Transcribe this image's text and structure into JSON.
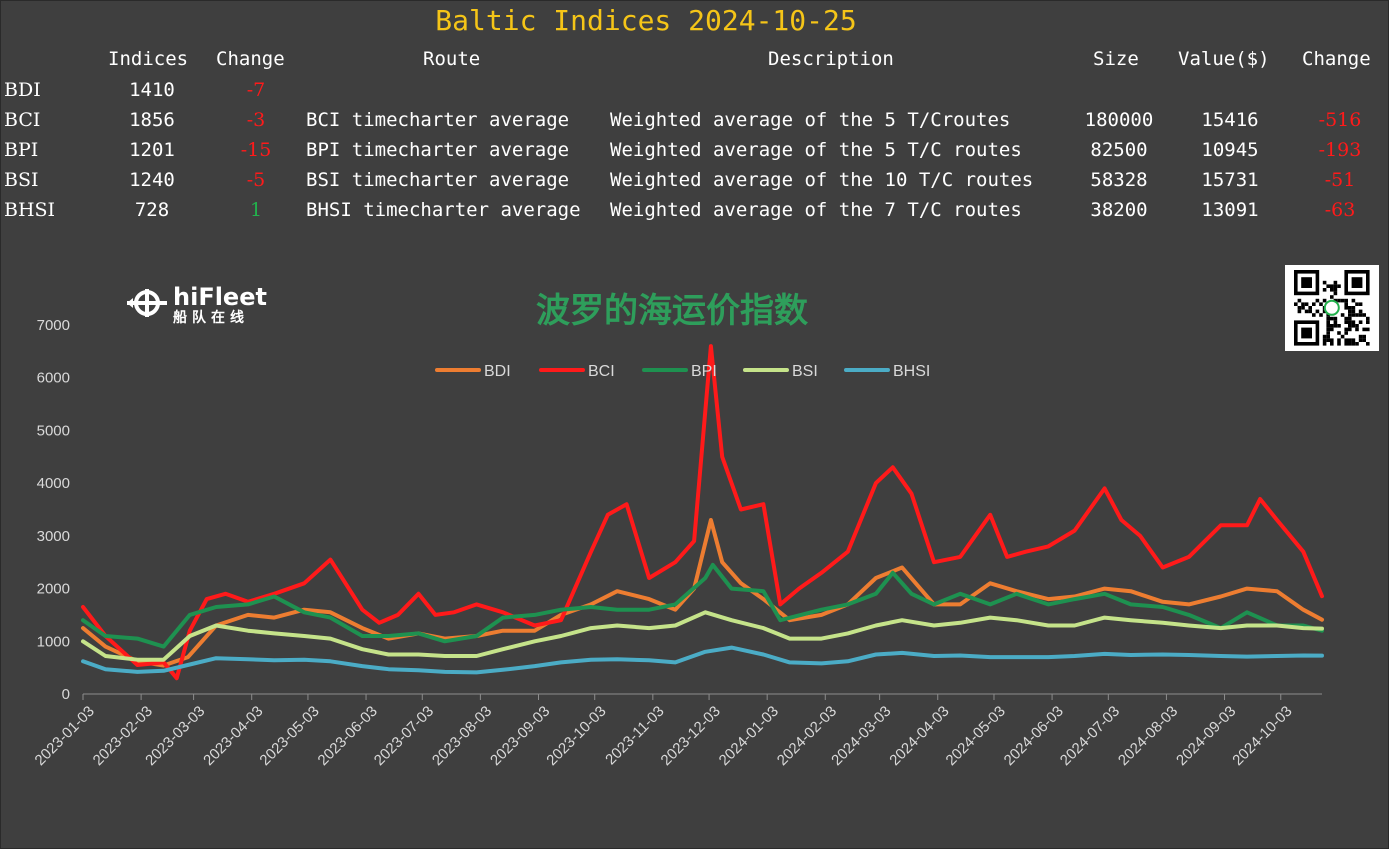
{
  "title": "Baltic Indices 2024-10-25",
  "table": {
    "headers": [
      "Indices",
      "Change",
      "Route",
      "Description",
      "Size",
      "Value($)",
      "Change"
    ],
    "rows": [
      {
        "code": "BDI",
        "index": "1410",
        "change": "-7",
        "route": "",
        "description": "",
        "size": "",
        "value": "",
        "vchange": ""
      },
      {
        "code": "BCI",
        "index": "1856",
        "change": "-3",
        "route": "BCI timecharter average",
        "description": "Weighted average of the 5 T/Croutes",
        "size": "180000",
        "value": "15416",
        "vchange": "-516"
      },
      {
        "code": "BPI",
        "index": "1201",
        "change": "-15",
        "route": "BPI timecharter average",
        "description": "Weighted average of the 5 T/C routes",
        "size": "82500",
        "value": "10945",
        "vchange": "-193"
      },
      {
        "code": "BSI",
        "index": "1240",
        "change": "-5",
        "route": "BSI timecharter average",
        "description": "Weighted average of the 10 T/C routes",
        "size": "58328",
        "value": "15731",
        "vchange": "-51"
      },
      {
        "code": "BHSI",
        "index": "728",
        "change": "1",
        "route": "BHSI timecharter average",
        "description": "Weighted average of the 7 T/C routes",
        "size": "38200",
        "value": "13091",
        "vchange": "-63"
      }
    ]
  },
  "logo": {
    "name": "hiFleet",
    "subtitle": "船队在线",
    "icon": "ship-wheel-icon"
  },
  "qr": {
    "icon": "qr-code-icon"
  },
  "colors": {
    "title": "#f5c518",
    "negative": "#ff1a1a",
    "positive": "#22b14c",
    "chart_title": "#2e9e5b",
    "background": "#3f3f3f"
  },
  "chart_data": {
    "type": "line",
    "title": "波罗的海运价指数",
    "ylim": [
      0,
      7000
    ],
    "yticks": [
      0,
      1000,
      2000,
      3000,
      4000,
      5000,
      6000,
      7000
    ],
    "xrange": [
      "2023-01-03",
      "2024-10-25"
    ],
    "xticks": [
      "2023-01-03",
      "2023-02-03",
      "2023-03-03",
      "2023-04-03",
      "2023-05-03",
      "2023-06-03",
      "2023-07-03",
      "2023-08-03",
      "2023-09-03",
      "2023-10-03",
      "2023-11-03",
      "2023-12-03",
      "2024-01-03",
      "2024-02-03",
      "2024-03-03",
      "2024-04-03",
      "2024-05-03",
      "2024-06-03",
      "2024-07-03",
      "2024-08-03",
      "2024-09-03",
      "2024-10-03"
    ],
    "legend_position": "top-center",
    "grid": false,
    "series": [
      {
        "name": "BDI",
        "color": "#ed7d31",
        "points": [
          [
            "2023-01-03",
            1250
          ],
          [
            "2023-01-15",
            900
          ],
          [
            "2023-02-01",
            620
          ],
          [
            "2023-02-15",
            540
          ],
          [
            "2023-02-28",
            700
          ],
          [
            "2023-03-15",
            1300
          ],
          [
            "2023-04-01",
            1500
          ],
          [
            "2023-04-15",
            1450
          ],
          [
            "2023-05-01",
            1600
          ],
          [
            "2023-05-15",
            1550
          ],
          [
            "2023-06-01",
            1250
          ],
          [
            "2023-06-15",
            1050
          ],
          [
            "2023-07-01",
            1150
          ],
          [
            "2023-07-15",
            1050
          ],
          [
            "2023-08-01",
            1100
          ],
          [
            "2023-08-15",
            1200
          ],
          [
            "2023-09-01",
            1200
          ],
          [
            "2023-09-15",
            1500
          ],
          [
            "2023-10-01",
            1700
          ],
          [
            "2023-10-15",
            1950
          ],
          [
            "2023-11-01",
            1800
          ],
          [
            "2023-11-15",
            1600
          ],
          [
            "2023-11-25",
            2000
          ],
          [
            "2023-12-04",
            3300
          ],
          [
            "2023-12-10",
            2500
          ],
          [
            "2023-12-20",
            2100
          ],
          [
            "2024-01-01",
            1800
          ],
          [
            "2024-01-15",
            1400
          ],
          [
            "2024-02-01",
            1500
          ],
          [
            "2024-02-15",
            1700
          ],
          [
            "2024-03-01",
            2200
          ],
          [
            "2024-03-15",
            2400
          ],
          [
            "2024-04-01",
            1700
          ],
          [
            "2024-04-15",
            1700
          ],
          [
            "2024-05-01",
            2100
          ],
          [
            "2024-05-15",
            1950
          ],
          [
            "2024-06-01",
            1800
          ],
          [
            "2024-06-15",
            1850
          ],
          [
            "2024-07-01",
            2000
          ],
          [
            "2024-07-15",
            1950
          ],
          [
            "2024-08-01",
            1750
          ],
          [
            "2024-08-15",
            1700
          ],
          [
            "2024-09-01",
            1850
          ],
          [
            "2024-09-15",
            2000
          ],
          [
            "2024-10-01",
            1950
          ],
          [
            "2024-10-15",
            1600
          ],
          [
            "2024-10-25",
            1410
          ]
        ]
      },
      {
        "name": "BCI",
        "color": "#ff1a1a",
        "points": [
          [
            "2023-01-03",
            1650
          ],
          [
            "2023-01-15",
            1100
          ],
          [
            "2023-02-01",
            550
          ],
          [
            "2023-02-15",
            600
          ],
          [
            "2023-02-22",
            300
          ],
          [
            "2023-03-01",
            1200
          ],
          [
            "2023-03-10",
            1800
          ],
          [
            "2023-03-20",
            1900
          ],
          [
            "2023-04-01",
            1750
          ],
          [
            "2023-04-15",
            1900
          ],
          [
            "2023-05-01",
            2100
          ],
          [
            "2023-05-15",
            2550
          ],
          [
            "2023-06-01",
            1600
          ],
          [
            "2023-06-10",
            1350
          ],
          [
            "2023-06-20",
            1500
          ],
          [
            "2023-07-01",
            1900
          ],
          [
            "2023-07-10",
            1500
          ],
          [
            "2023-07-20",
            1550
          ],
          [
            "2023-08-01",
            1700
          ],
          [
            "2023-08-15",
            1550
          ],
          [
            "2023-09-01",
            1300
          ],
          [
            "2023-09-15",
            1400
          ],
          [
            "2023-10-01",
            2700
          ],
          [
            "2023-10-10",
            3400
          ],
          [
            "2023-10-20",
            3600
          ],
          [
            "2023-11-01",
            2200
          ],
          [
            "2023-11-15",
            2500
          ],
          [
            "2023-11-25",
            2900
          ],
          [
            "2023-12-04",
            6600
          ],
          [
            "2023-12-10",
            4500
          ],
          [
            "2023-12-20",
            3500
          ],
          [
            "2024-01-01",
            3600
          ],
          [
            "2024-01-10",
            1700
          ],
          [
            "2024-01-20",
            2000
          ],
          [
            "2024-02-01",
            2300
          ],
          [
            "2024-02-15",
            2700
          ],
          [
            "2024-03-01",
            4000
          ],
          [
            "2024-03-10",
            4300
          ],
          [
            "2024-03-20",
            3800
          ],
          [
            "2024-04-01",
            2500
          ],
          [
            "2024-04-15",
            2600
          ],
          [
            "2024-05-01",
            3400
          ],
          [
            "2024-05-10",
            2600
          ],
          [
            "2024-05-20",
            2700
          ],
          [
            "2024-06-01",
            2800
          ],
          [
            "2024-06-15",
            3100
          ],
          [
            "2024-07-01",
            3900
          ],
          [
            "2024-07-10",
            3300
          ],
          [
            "2024-07-20",
            3000
          ],
          [
            "2024-08-01",
            2400
          ],
          [
            "2024-08-15",
            2600
          ],
          [
            "2024-09-01",
            3200
          ],
          [
            "2024-09-15",
            3200
          ],
          [
            "2024-09-22",
            3700
          ],
          [
            "2024-10-01",
            3300
          ],
          [
            "2024-10-15",
            2700
          ],
          [
            "2024-10-25",
            1856
          ]
        ]
      },
      {
        "name": "BPI",
        "color": "#1e9150",
        "points": [
          [
            "2023-01-03",
            1400
          ],
          [
            "2023-01-15",
            1100
          ],
          [
            "2023-02-01",
            1050
          ],
          [
            "2023-02-15",
            900
          ],
          [
            "2023-03-01",
            1500
          ],
          [
            "2023-03-15",
            1650
          ],
          [
            "2023-04-01",
            1700
          ],
          [
            "2023-04-15",
            1850
          ],
          [
            "2023-05-01",
            1550
          ],
          [
            "2023-05-15",
            1450
          ],
          [
            "2023-06-01",
            1100
          ],
          [
            "2023-06-15",
            1100
          ],
          [
            "2023-07-01",
            1150
          ],
          [
            "2023-07-15",
            1000
          ],
          [
            "2023-08-01",
            1100
          ],
          [
            "2023-08-15",
            1450
          ],
          [
            "2023-09-01",
            1500
          ],
          [
            "2023-09-15",
            1600
          ],
          [
            "2023-10-01",
            1650
          ],
          [
            "2023-10-15",
            1600
          ],
          [
            "2023-11-01",
            1600
          ],
          [
            "2023-11-15",
            1700
          ],
          [
            "2023-12-01",
            2200
          ],
          [
            "2023-12-05",
            2450
          ],
          [
            "2023-12-15",
            2000
          ],
          [
            "2024-01-01",
            1950
          ],
          [
            "2024-01-10",
            1400
          ],
          [
            "2024-02-01",
            1600
          ],
          [
            "2024-02-15",
            1700
          ],
          [
            "2024-03-01",
            1900
          ],
          [
            "2024-03-10",
            2300
          ],
          [
            "2024-03-20",
            1900
          ],
          [
            "2024-04-01",
            1700
          ],
          [
            "2024-04-15",
            1900
          ],
          [
            "2024-05-01",
            1700
          ],
          [
            "2024-05-15",
            1900
          ],
          [
            "2024-06-01",
            1700
          ],
          [
            "2024-06-15",
            1800
          ],
          [
            "2024-07-01",
            1900
          ],
          [
            "2024-07-15",
            1700
          ],
          [
            "2024-08-01",
            1650
          ],
          [
            "2024-08-15",
            1500
          ],
          [
            "2024-09-01",
            1250
          ],
          [
            "2024-09-15",
            1550
          ],
          [
            "2024-10-01",
            1300
          ],
          [
            "2024-10-15",
            1300
          ],
          [
            "2024-10-25",
            1201
          ]
        ]
      },
      {
        "name": "BSI",
        "color": "#c5e38a",
        "points": [
          [
            "2023-01-03",
            1000
          ],
          [
            "2023-01-15",
            720
          ],
          [
            "2023-02-01",
            650
          ],
          [
            "2023-02-15",
            650
          ],
          [
            "2023-03-01",
            1100
          ],
          [
            "2023-03-15",
            1300
          ],
          [
            "2023-04-01",
            1200
          ],
          [
            "2023-04-15",
            1150
          ],
          [
            "2023-05-01",
            1100
          ],
          [
            "2023-05-15",
            1050
          ],
          [
            "2023-06-01",
            850
          ],
          [
            "2023-06-15",
            750
          ],
          [
            "2023-07-01",
            750
          ],
          [
            "2023-07-15",
            720
          ],
          [
            "2023-08-01",
            720
          ],
          [
            "2023-08-15",
            850
          ],
          [
            "2023-09-01",
            1000
          ],
          [
            "2023-09-15",
            1100
          ],
          [
            "2023-10-01",
            1250
          ],
          [
            "2023-10-15",
            1300
          ],
          [
            "2023-11-01",
            1250
          ],
          [
            "2023-11-15",
            1300
          ],
          [
            "2023-12-01",
            1550
          ],
          [
            "2023-12-15",
            1400
          ],
          [
            "2024-01-01",
            1250
          ],
          [
            "2024-01-15",
            1050
          ],
          [
            "2024-02-01",
            1050
          ],
          [
            "2024-02-15",
            1150
          ],
          [
            "2024-03-01",
            1300
          ],
          [
            "2024-03-15",
            1400
          ],
          [
            "2024-04-01",
            1300
          ],
          [
            "2024-04-15",
            1350
          ],
          [
            "2024-05-01",
            1450
          ],
          [
            "2024-05-15",
            1400
          ],
          [
            "2024-06-01",
            1300
          ],
          [
            "2024-06-15",
            1300
          ],
          [
            "2024-07-01",
            1450
          ],
          [
            "2024-07-15",
            1400
          ],
          [
            "2024-08-01",
            1350
          ],
          [
            "2024-08-15",
            1300
          ],
          [
            "2024-09-01",
            1250
          ],
          [
            "2024-09-15",
            1300
          ],
          [
            "2024-10-01",
            1300
          ],
          [
            "2024-10-15",
            1250
          ],
          [
            "2024-10-25",
            1240
          ]
        ]
      },
      {
        "name": "BHSI",
        "color": "#4bacc6",
        "points": [
          [
            "2023-01-03",
            620
          ],
          [
            "2023-01-15",
            470
          ],
          [
            "2023-02-01",
            420
          ],
          [
            "2023-02-15",
            440
          ],
          [
            "2023-03-01",
            560
          ],
          [
            "2023-03-15",
            680
          ],
          [
            "2023-04-01",
            660
          ],
          [
            "2023-04-15",
            640
          ],
          [
            "2023-05-01",
            650
          ],
          [
            "2023-05-15",
            620
          ],
          [
            "2023-06-01",
            530
          ],
          [
            "2023-06-15",
            470
          ],
          [
            "2023-07-01",
            450
          ],
          [
            "2023-07-15",
            420
          ],
          [
            "2023-08-01",
            410
          ],
          [
            "2023-08-15",
            460
          ],
          [
            "2023-09-01",
            530
          ],
          [
            "2023-09-15",
            600
          ],
          [
            "2023-10-01",
            650
          ],
          [
            "2023-10-15",
            660
          ],
          [
            "2023-11-01",
            640
          ],
          [
            "2023-11-15",
            600
          ],
          [
            "2023-12-01",
            800
          ],
          [
            "2023-12-15",
            880
          ],
          [
            "2024-01-01",
            750
          ],
          [
            "2024-01-15",
            600
          ],
          [
            "2024-02-01",
            580
          ],
          [
            "2024-02-15",
            620
          ],
          [
            "2024-03-01",
            750
          ],
          [
            "2024-03-15",
            780
          ],
          [
            "2024-04-01",
            720
          ],
          [
            "2024-04-15",
            730
          ],
          [
            "2024-05-01",
            700
          ],
          [
            "2024-05-15",
            700
          ],
          [
            "2024-06-01",
            700
          ],
          [
            "2024-06-15",
            720
          ],
          [
            "2024-07-01",
            760
          ],
          [
            "2024-07-15",
            740
          ],
          [
            "2024-08-01",
            750
          ],
          [
            "2024-08-15",
            740
          ],
          [
            "2024-09-01",
            720
          ],
          [
            "2024-09-15",
            710
          ],
          [
            "2024-10-01",
            720
          ],
          [
            "2024-10-15",
            730
          ],
          [
            "2024-10-25",
            728
          ]
        ]
      }
    ]
  }
}
